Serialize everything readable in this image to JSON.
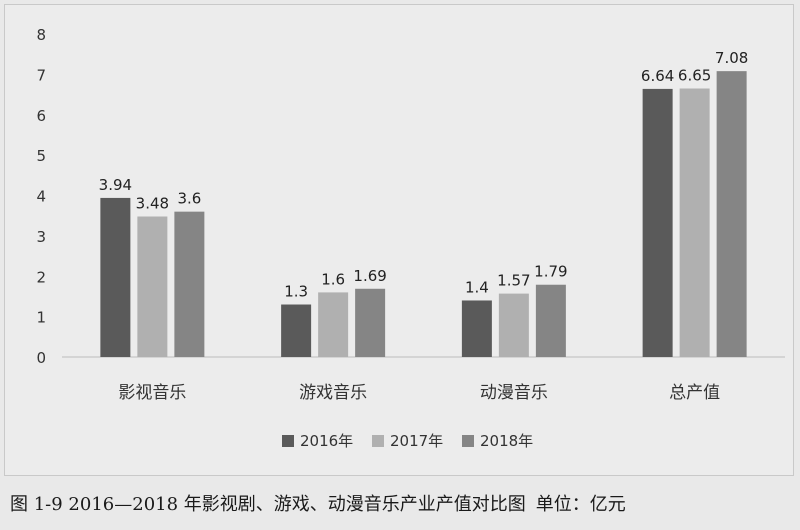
{
  "chart_data": {
    "type": "bar",
    "title": "",
    "xlabel": "",
    "ylabel": "",
    "categories": [
      "影视音乐",
      "游戏音乐",
      "动漫音乐",
      "总产值"
    ],
    "series": [
      {
        "name": "2016年",
        "values": [
          3.94,
          1.3,
          1.4,
          6.64
        ],
        "labels": [
          "3.94",
          "1.3",
          "1.4",
          "6.64"
        ],
        "color": "#5a5a5a"
      },
      {
        "name": "2017年",
        "values": [
          3.48,
          1.6,
          1.57,
          6.65
        ],
        "labels": [
          "3.48",
          "1.6",
          "1.57",
          "6.65"
        ],
        "color": "#b0b0b0"
      },
      {
        "name": "2018年",
        "values": [
          3.6,
          1.69,
          1.79,
          7.08
        ],
        "labels": [
          "3.6",
          "1.69",
          "1.79",
          "7.08"
        ],
        "color": "#858585"
      }
    ],
    "ylim": [
      0,
      8
    ],
    "yticks": [
      0,
      1,
      2,
      3,
      4,
      5,
      6,
      7,
      8
    ],
    "grid": false,
    "legend_position": "bottom"
  },
  "caption": {
    "text": "图 1-9  2016—2018 年影视剧、游戏、动漫音乐产业产值对比图",
    "unit": "单位：亿元"
  }
}
